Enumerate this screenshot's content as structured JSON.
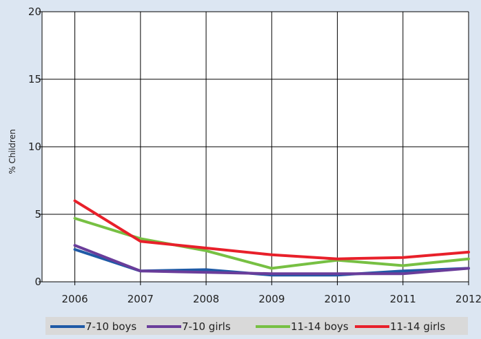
{
  "chart_data": {
    "type": "line",
    "title": "",
    "xlabel": "",
    "ylabel": "% Children",
    "categories": [
      "2006",
      "2007",
      "2008",
      "2009",
      "2010",
      "2011",
      "2012"
    ],
    "ylim": [
      0,
      20
    ],
    "yticks": [
      "0",
      "5",
      "10",
      "15",
      "20"
    ],
    "grid": true,
    "legend_position": "bottom",
    "series": [
      {
        "name": "7-10 boys",
        "color": "#1f5aa6",
        "values": [
          2.4,
          0.8,
          0.9,
          0.5,
          0.5,
          0.8,
          1.0
        ]
      },
      {
        "name": "7-10 girls",
        "color": "#6a3d9a",
        "values": [
          2.7,
          0.8,
          0.7,
          0.6,
          0.6,
          0.6,
          1.0
        ]
      },
      {
        "name": "11-14 boys",
        "color": "#77c043",
        "values": [
          4.7,
          3.2,
          2.3,
          1.0,
          1.6,
          1.2,
          1.7
        ]
      },
      {
        "name": "11-14 girls",
        "color": "#e8202a",
        "values": [
          6.0,
          3.0,
          2.5,
          2.0,
          1.7,
          1.8,
          2.2
        ]
      }
    ]
  }
}
